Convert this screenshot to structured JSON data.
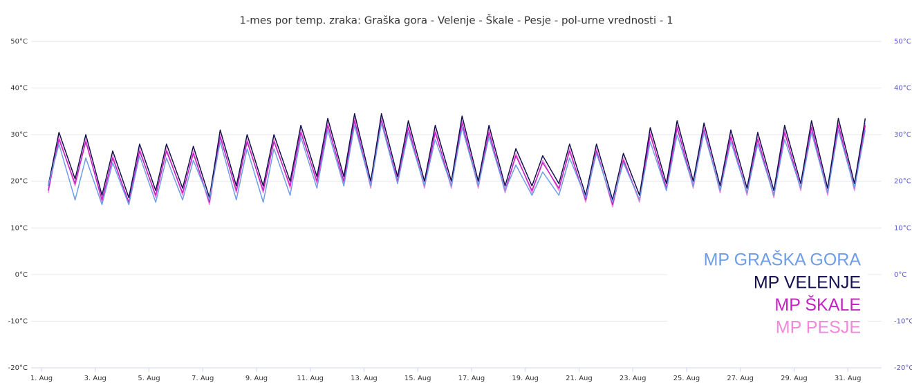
{
  "chart_data": {
    "type": "line",
    "title": "1-mes por temp. zraka: Graška gora - Velenje - Škale - Pesje - pol-urne vrednosti - 1",
    "x": [
      1.25,
      1.65,
      2.25,
      2.65,
      3.25,
      3.65,
      4.25,
      4.65,
      5.25,
      5.65,
      6.25,
      6.65,
      7.25,
      7.65,
      8.25,
      8.65,
      9.25,
      9.65,
      10.25,
      10.65,
      11.25,
      11.65,
      12.25,
      12.65,
      13.25,
      13.65,
      14.25,
      14.65,
      15.25,
      15.65,
      16.25,
      16.65,
      17.25,
      17.65,
      18.25,
      18.65,
      19.25,
      19.65,
      20.25,
      20.65,
      21.25,
      21.65,
      22.25,
      22.65,
      23.25,
      23.65,
      24.25,
      24.65,
      25.25,
      25.65,
      26.25,
      26.65,
      27.25,
      27.65,
      28.25,
      28.65,
      29.25,
      29.65,
      30.25,
      30.65,
      31.25,
      31.65
    ],
    "xlim": [
      1,
      32
    ],
    "xticks": [
      {
        "value": 1,
        "label": "1. Aug"
      },
      {
        "value": 3,
        "label": "3. Aug"
      },
      {
        "value": 5,
        "label": "5. Aug"
      },
      {
        "value": 7,
        "label": "7. Aug"
      },
      {
        "value": 9,
        "label": "9. Aug"
      },
      {
        "value": 11,
        "label": "11. Aug"
      },
      {
        "value": 13,
        "label": "13. Aug"
      },
      {
        "value": 15,
        "label": "15. Aug"
      },
      {
        "value": 17,
        "label": "17. Aug"
      },
      {
        "value": 19,
        "label": "19. Aug"
      },
      {
        "value": 21,
        "label": "21. Aug"
      },
      {
        "value": 23,
        "label": "23. Aug"
      },
      {
        "value": 25,
        "label": "25. Aug"
      },
      {
        "value": 27,
        "label": "27. Aug"
      },
      {
        "value": 29,
        "label": "29. Aug"
      },
      {
        "value": 31,
        "label": "31. Aug"
      }
    ],
    "ylim": [
      -20,
      50
    ],
    "yticks": [
      {
        "value": -20,
        "label": "-20°C"
      },
      {
        "value": -10,
        "label": "-10°C"
      },
      {
        "value": 0,
        "label": "0°C"
      },
      {
        "value": 10,
        "label": "10°C"
      },
      {
        "value": 20,
        "label": "20°C"
      },
      {
        "value": 30,
        "label": "30°C"
      },
      {
        "value": 40,
        "label": "40°C"
      },
      {
        "value": 50,
        "label": "50°C"
      }
    ],
    "y2lim": [
      -20,
      50
    ],
    "y2ticks": [
      {
        "value": -20,
        "label": "-20°C"
      },
      {
        "value": -10,
        "label": "-10°C"
      },
      {
        "value": 0,
        "label": "0°C"
      },
      {
        "value": 10,
        "label": "10°C"
      },
      {
        "value": 20,
        "label": "20°C"
      },
      {
        "value": 30,
        "label": "30°C"
      },
      {
        "value": 40,
        "label": "40°C"
      },
      {
        "value": 50,
        "label": "50°C"
      }
    ],
    "grid": true,
    "legend": "bottom-right",
    "series": [
      {
        "name": "MP GRAŠKA GORA",
        "color": "#6f9de6",
        "values": [
          19,
          28,
          16,
          25,
          15,
          24,
          15,
          25.5,
          15.5,
          25,
          16,
          24.5,
          16,
          28.5,
          16,
          27,
          15.5,
          27,
          17,
          29.5,
          18.5,
          31,
          19,
          32,
          19,
          32.5,
          19.5,
          30.5,
          19,
          29,
          19,
          31.5,
          19,
          29.5,
          18,
          23.5,
          17,
          22,
          17,
          25,
          16.5,
          26,
          15.5,
          24,
          16,
          28.5,
          18,
          30,
          19,
          30.5,
          18,
          28.5,
          17.5,
          28,
          17,
          29,
          18.5,
          30.5,
          17.5,
          31,
          18.5,
          31
        ]
      },
      {
        "name": "MP VELENJE",
        "color": "#15104f",
        "values": [
          19,
          30.5,
          20.5,
          30,
          17,
          26.5,
          16.5,
          28,
          18,
          28,
          18.5,
          27.5,
          16.5,
          31,
          19,
          30,
          19,
          30,
          20,
          32,
          21,
          33.5,
          21,
          34.5,
          20,
          34.5,
          21,
          33,
          20,
          32,
          20,
          34,
          20,
          32,
          19,
          27,
          19,
          25.5,
          19.5,
          28,
          17,
          28,
          16,
          26,
          17,
          31.5,
          19.5,
          33,
          20,
          32.5,
          19,
          31,
          18.5,
          30.5,
          18,
          32,
          19.5,
          33,
          18.5,
          33.5,
          19.5,
          33.5
        ]
      },
      {
        "name": "MP ŠKALE",
        "color": "#c81fc4",
        "values": [
          18,
          29,
          19.5,
          28.5,
          16,
          25,
          15.5,
          26.5,
          17,
          26.5,
          17.5,
          26,
          15.5,
          29.5,
          18,
          28.5,
          18,
          28.5,
          19,
          30.5,
          20,
          32,
          20,
          33,
          19,
          33,
          20,
          31.5,
          19,
          30.5,
          19,
          32.5,
          19,
          30.5,
          18,
          25.5,
          18,
          24,
          18.5,
          26.5,
          16,
          26.5,
          15,
          24.5,
          16,
          30,
          18.5,
          31.5,
          19,
          31,
          18,
          29.5,
          17.5,
          29,
          17,
          30.5,
          18.5,
          31.5,
          17.5,
          32,
          18.5,
          32
        ]
      },
      {
        "name": "MP PESJE",
        "color": "#f08ad8",
        "values": [
          17.5,
          29.5,
          19,
          29,
          15.5,
          25.5,
          15,
          27,
          16.5,
          27,
          17,
          26.5,
          15,
          30,
          17.5,
          29,
          17.5,
          29,
          18.5,
          31,
          19.5,
          32.5,
          19.5,
          33.5,
          18.5,
          33.5,
          19.5,
          32,
          18.5,
          31,
          18.5,
          33,
          18.5,
          31,
          17.5,
          26,
          17.5,
          24.5,
          18,
          27,
          15.5,
          27,
          14.5,
          25,
          15.5,
          30.5,
          18,
          32,
          18.5,
          31.5,
          17.5,
          30,
          17,
          29.5,
          16.5,
          31,
          18,
          32,
          17,
          32.5,
          18,
          32.5
        ]
      }
    ]
  }
}
